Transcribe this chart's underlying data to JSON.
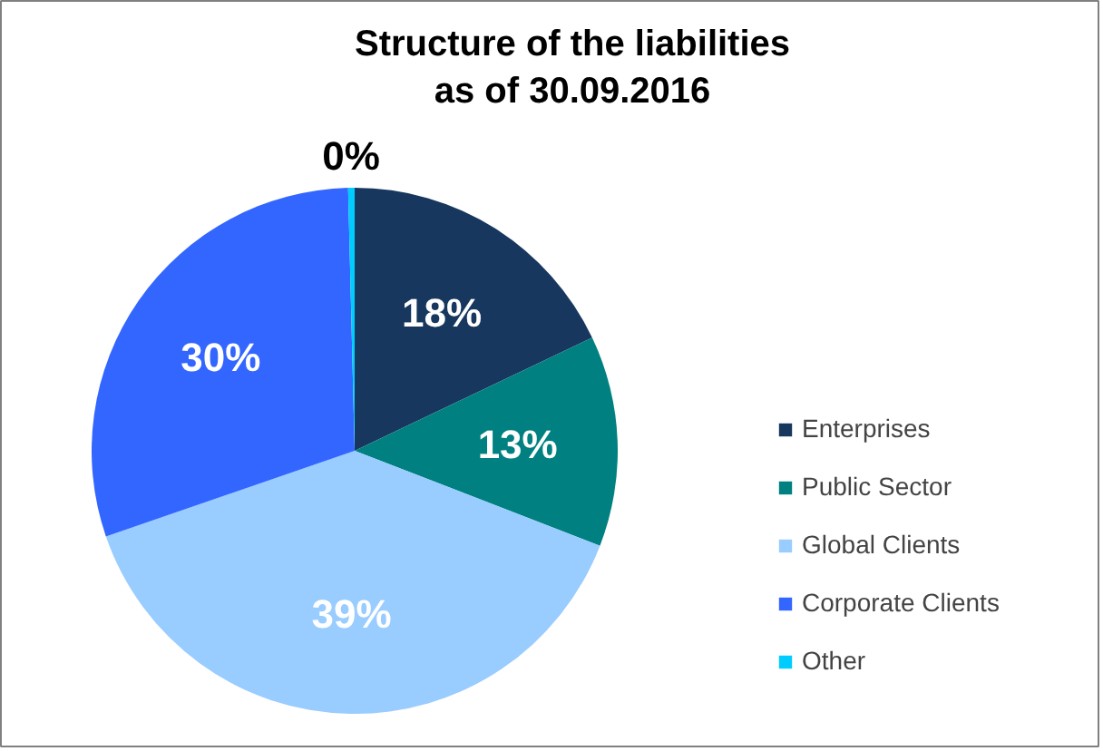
{
  "chart_data": {
    "type": "pie",
    "title": "Structure of the liabilities\nas of 30.09.2016",
    "categories": [
      "Enterprises",
      "Public Sector",
      "Global Clients",
      "Corporate Clients",
      "Other"
    ],
    "values": [
      18,
      13,
      39,
      30,
      0.4
    ],
    "value_labels": [
      "18%",
      "13%",
      "39%",
      "30%",
      "0%"
    ],
    "colors": [
      "#17375e",
      "#008080",
      "#99ccff",
      "#3366ff",
      "#00ccff"
    ],
    "legend": "right"
  }
}
